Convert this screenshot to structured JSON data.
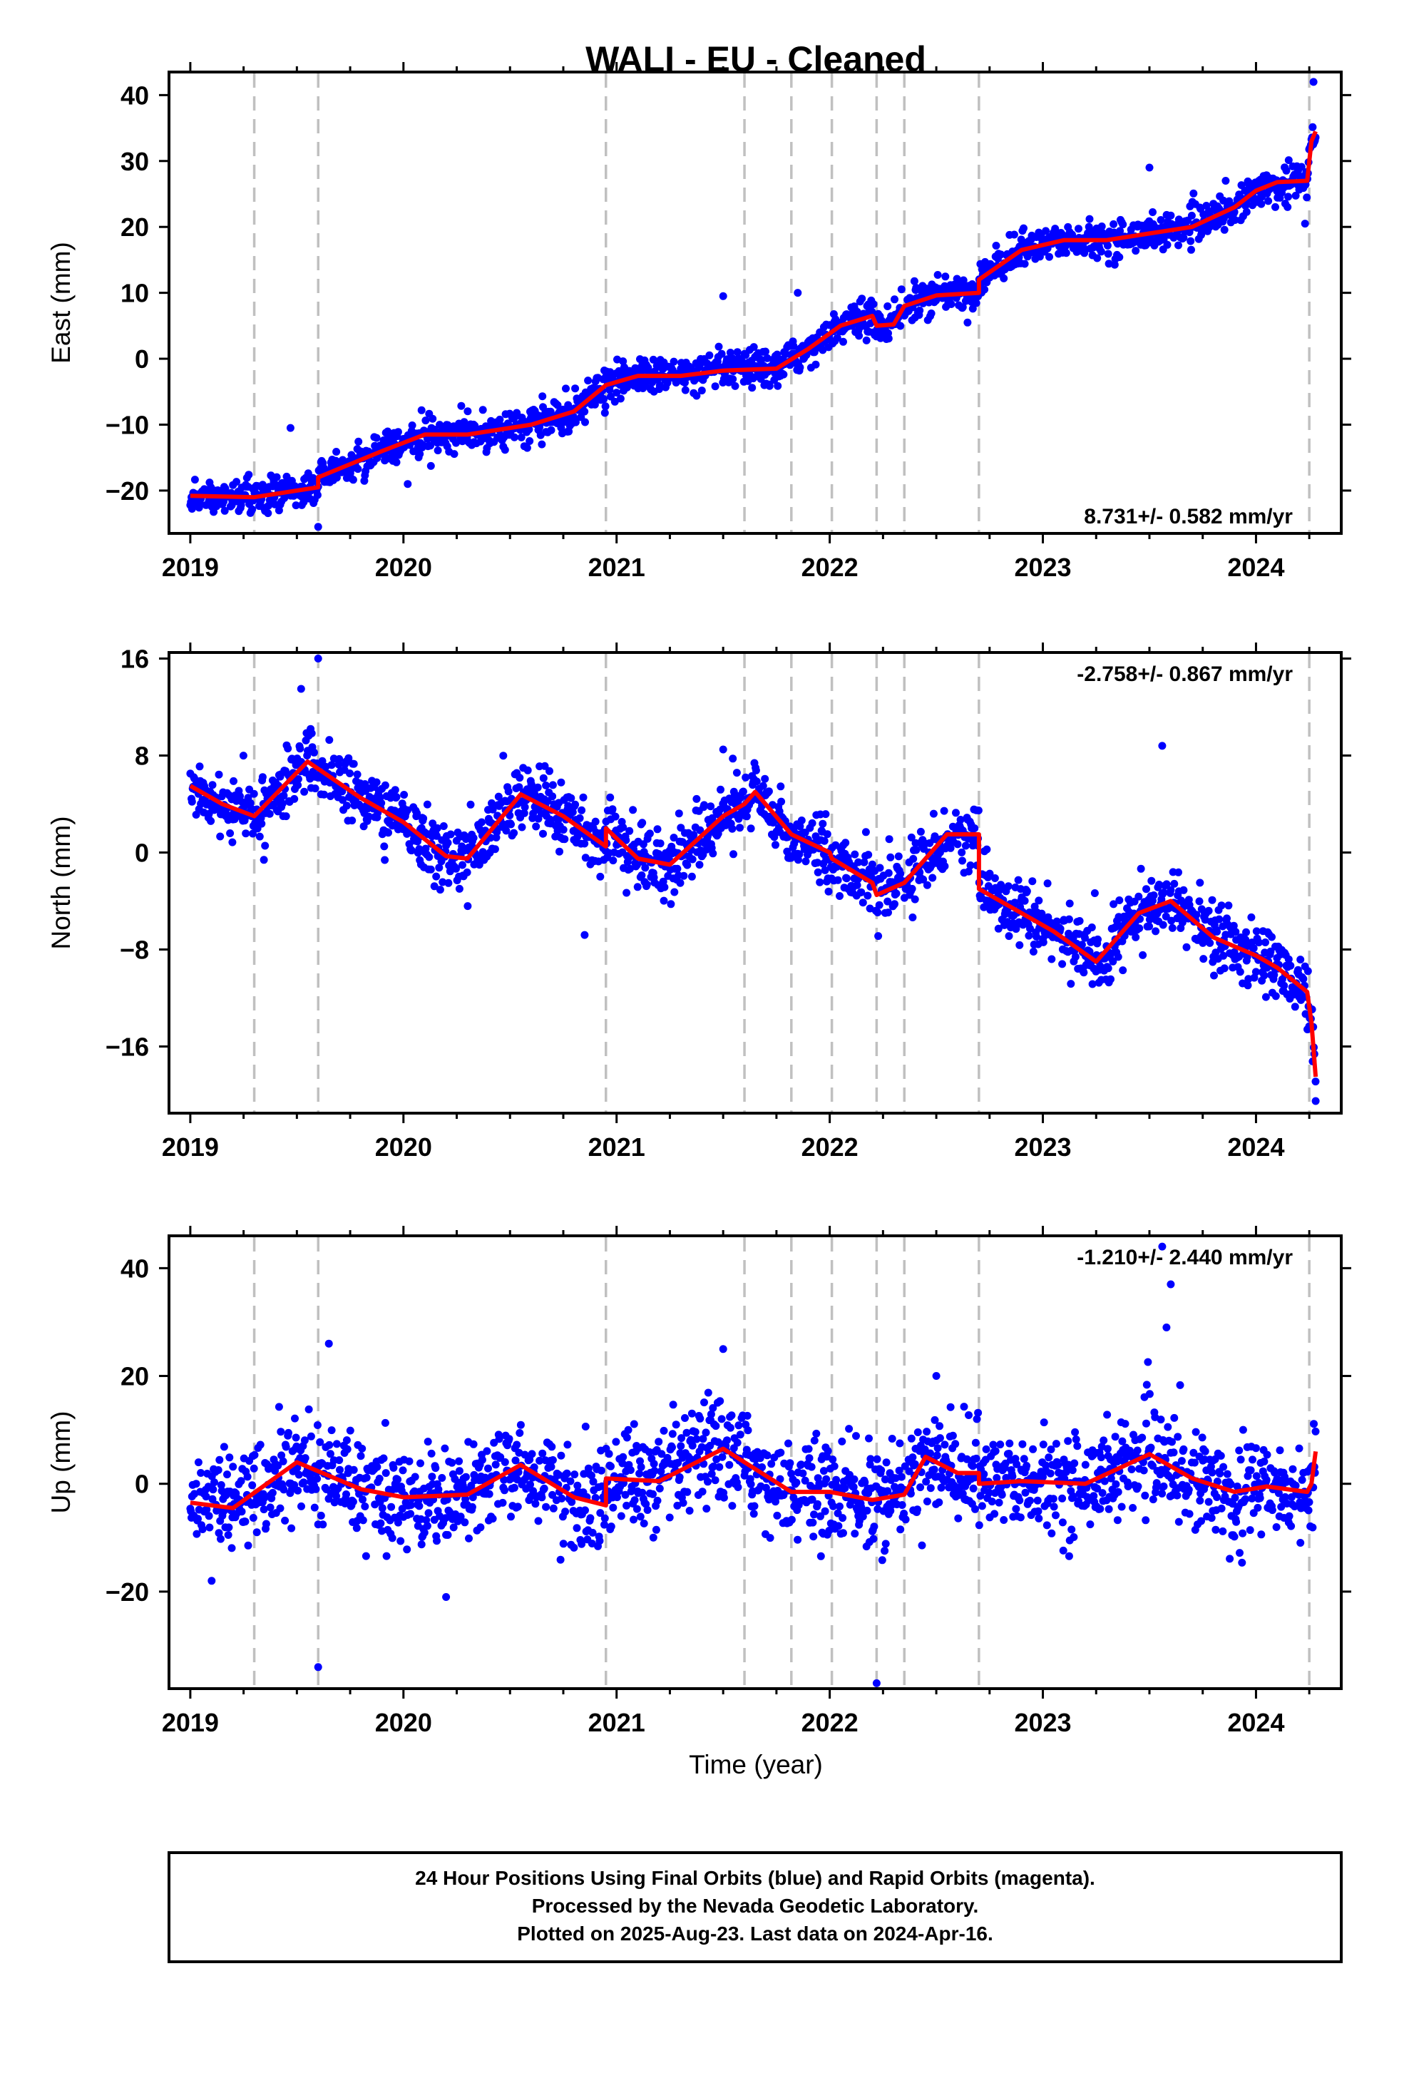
{
  "title": "WALI  - EU - Cleaned",
  "xlabel": "Time (year)",
  "footer": {
    "lines": [
      "24 Hour Positions Using Final Orbits (blue) and Rapid Orbits (magenta).",
      "Processed by the Nevada Geodetic Laboratory.",
      "Plotted on 2025-Aug-23. Last data on 2024-Apr-16."
    ]
  },
  "colors": {
    "points": "#0000ff",
    "model": "#ff0000",
    "breaks": "#c0c0c0",
    "axis": "#000000"
  },
  "x_axis": {
    "range": [
      2018.9,
      2024.4
    ],
    "ticks": [
      2019,
      2020,
      2021,
      2022,
      2023,
      2024
    ],
    "tick_labels": [
      "2019",
      "2020",
      "2021",
      "2022",
      "2023",
      "2024"
    ]
  },
  "chart_data": [
    {
      "type": "scatter",
      "component": "east",
      "ylabel": "East (mm)",
      "ylim": [
        -26.5,
        43.5
      ],
      "y_ticks": [
        -20,
        -10,
        0,
        10,
        20,
        30,
        40
      ],
      "y_tick_labels": [
        "−20",
        "−10",
        "0",
        "10",
        "20",
        "30",
        "40"
      ],
      "rate_label": "8.731+/- 0.582 mm/yr",
      "rate_position": "bottom-right",
      "grid": false,
      "breaks": [
        2019.3,
        2019.6,
        2020.95,
        2021.6,
        2021.82,
        2022.01,
        2022.22,
        2022.35,
        2022.7,
        2024.25
      ],
      "model": {
        "x": [
          2019.0,
          2019.3,
          2019.6,
          2019.6,
          2019.9,
          2020.1,
          2020.3,
          2020.6,
          2020.8,
          2020.95,
          2021.1,
          2021.3,
          2021.5,
          2021.75,
          2021.9,
          2022.05,
          2022.2,
          2022.22,
          2022.3,
          2022.35,
          2022.5,
          2022.7,
          2022.7,
          2022.9,
          2023.1,
          2023.3,
          2023.5,
          2023.7,
          2023.9,
          2024.0,
          2024.1,
          2024.24,
          2024.26,
          2024.28
        ],
        "y": [
          -20.8,
          -21.0,
          -19.5,
          -18.0,
          -14.0,
          -11.5,
          -11.5,
          -10.0,
          -8.0,
          -4.0,
          -2.6,
          -2.6,
          -1.8,
          -1.5,
          1.5,
          5.0,
          6.5,
          5.0,
          5.2,
          8.0,
          9.6,
          10.0,
          12.0,
          16.5,
          18.0,
          18.0,
          19.0,
          20.0,
          23.0,
          25.5,
          26.8,
          27.0,
          33.0,
          34.5
        ]
      },
      "scatter": {
        "sigma": 1.3,
        "outliers": [
          [
            2019.47,
            -10.5
          ],
          [
            2019.6,
            -25.5
          ],
          [
            2020.02,
            -19.0
          ],
          [
            2021.5,
            9.5
          ],
          [
            2021.85,
            10.0
          ],
          [
            2023.5,
            29.0
          ],
          [
            2024.23,
            20.5
          ],
          [
            2024.27,
            42.0
          ]
        ]
      }
    },
    {
      "type": "scatter",
      "component": "north",
      "ylabel": "North (mm)",
      "ylim": [
        -21.5,
        16.5
      ],
      "y_ticks": [
        -16,
        -8,
        0,
        8,
        16
      ],
      "y_tick_labels": [
        "−16",
        "−8",
        "0",
        "8",
        "16"
      ],
      "rate_label": "-2.758+/- 0.867 mm/yr",
      "rate_position": "top-right",
      "grid": false,
      "breaks": [
        2019.3,
        2019.6,
        2020.95,
        2021.6,
        2021.82,
        2022.01,
        2022.22,
        2022.35,
        2022.7,
        2024.25
      ],
      "model": {
        "x": [
          2019.0,
          2019.15,
          2019.3,
          2019.55,
          2019.8,
          2020.0,
          2020.2,
          2020.3,
          2020.55,
          2020.75,
          2020.95,
          2020.95,
          2021.1,
          2021.25,
          2021.5,
          2021.6,
          2021.65,
          2021.82,
          2022.0,
          2022.01,
          2022.2,
          2022.22,
          2022.35,
          2022.55,
          2022.7,
          2022.7,
          2022.9,
          2023.05,
          2023.25,
          2023.45,
          2023.6,
          2023.8,
          2024.0,
          2024.1,
          2024.24,
          2024.26,
          2024.28
        ],
        "y": [
          5.5,
          4.0,
          3.0,
          7.5,
          4.5,
          2.5,
          -0.3,
          -0.5,
          4.8,
          3.0,
          0.5,
          2.0,
          -0.5,
          -1.0,
          3.0,
          4.0,
          5.0,
          1.5,
          0.0,
          -0.5,
          -2.5,
          -3.5,
          -2.5,
          1.5,
          1.5,
          -3.0,
          -5.0,
          -6.5,
          -9.0,
          -5.0,
          -4.0,
          -7.0,
          -8.5,
          -9.5,
          -11.5,
          -14.0,
          -18.5
        ]
      },
      "scatter": {
        "sigma": 1.3,
        "outliers": [
          [
            2019.52,
            13.5
          ],
          [
            2019.6,
            16.0
          ],
          [
            2020.85,
            -6.8
          ],
          [
            2021.5,
            8.5
          ],
          [
            2023.56,
            8.8
          ],
          [
            2024.28,
            -20.5
          ]
        ]
      }
    },
    {
      "type": "scatter",
      "component": "up",
      "ylabel": "Up (mm)",
      "ylim": [
        -38,
        46
      ],
      "y_ticks": [
        -20,
        0,
        20,
        40
      ],
      "y_tick_labels": [
        "−20",
        "0",
        "20",
        "40"
      ],
      "rate_label": "-1.210+/- 2.440 mm/yr",
      "rate_position": "top-right",
      "grid": false,
      "breaks": [
        2019.3,
        2019.6,
        2020.95,
        2021.6,
        2021.82,
        2022.01,
        2022.22,
        2022.35,
        2022.7,
        2024.25
      ],
      "model": {
        "x": [
          2019.0,
          2019.2,
          2019.5,
          2019.8,
          2020.0,
          2020.3,
          2020.55,
          2020.8,
          2020.95,
          2020.95,
          2021.2,
          2021.5,
          2021.7,
          2021.82,
          2022.0,
          2022.2,
          2022.35,
          2022.45,
          2022.6,
          2022.7,
          2022.7,
          2022.9,
          2023.2,
          2023.5,
          2023.7,
          2023.9,
          2024.05,
          2024.24,
          2024.26,
          2024.28
        ],
        "y": [
          -3.5,
          -4.5,
          4.0,
          -1.0,
          -2.5,
          -2.0,
          3.5,
          -2.5,
          -4.0,
          1.0,
          0.5,
          6.5,
          1.5,
          -1.5,
          -1.5,
          -3.0,
          -2.0,
          5.0,
          2.0,
          2.0,
          0.0,
          0.5,
          0.0,
          5.5,
          1.0,
          -1.5,
          -0.5,
          -1.5,
          0.0,
          6.0
        ]
      },
      "scatter": {
        "sigma": 4.5,
        "outliers": [
          [
            2019.1,
            -18.0
          ],
          [
            2019.6,
            -34.0
          ],
          [
            2019.65,
            26.0
          ],
          [
            2020.2,
            -21.0
          ],
          [
            2021.5,
            25.0
          ],
          [
            2022.22,
            -37.0
          ],
          [
            2023.56,
            44.0
          ],
          [
            2023.6,
            37.0
          ],
          [
            2023.58,
            29.0
          ],
          [
            2022.5,
            20.0
          ]
        ]
      }
    }
  ]
}
